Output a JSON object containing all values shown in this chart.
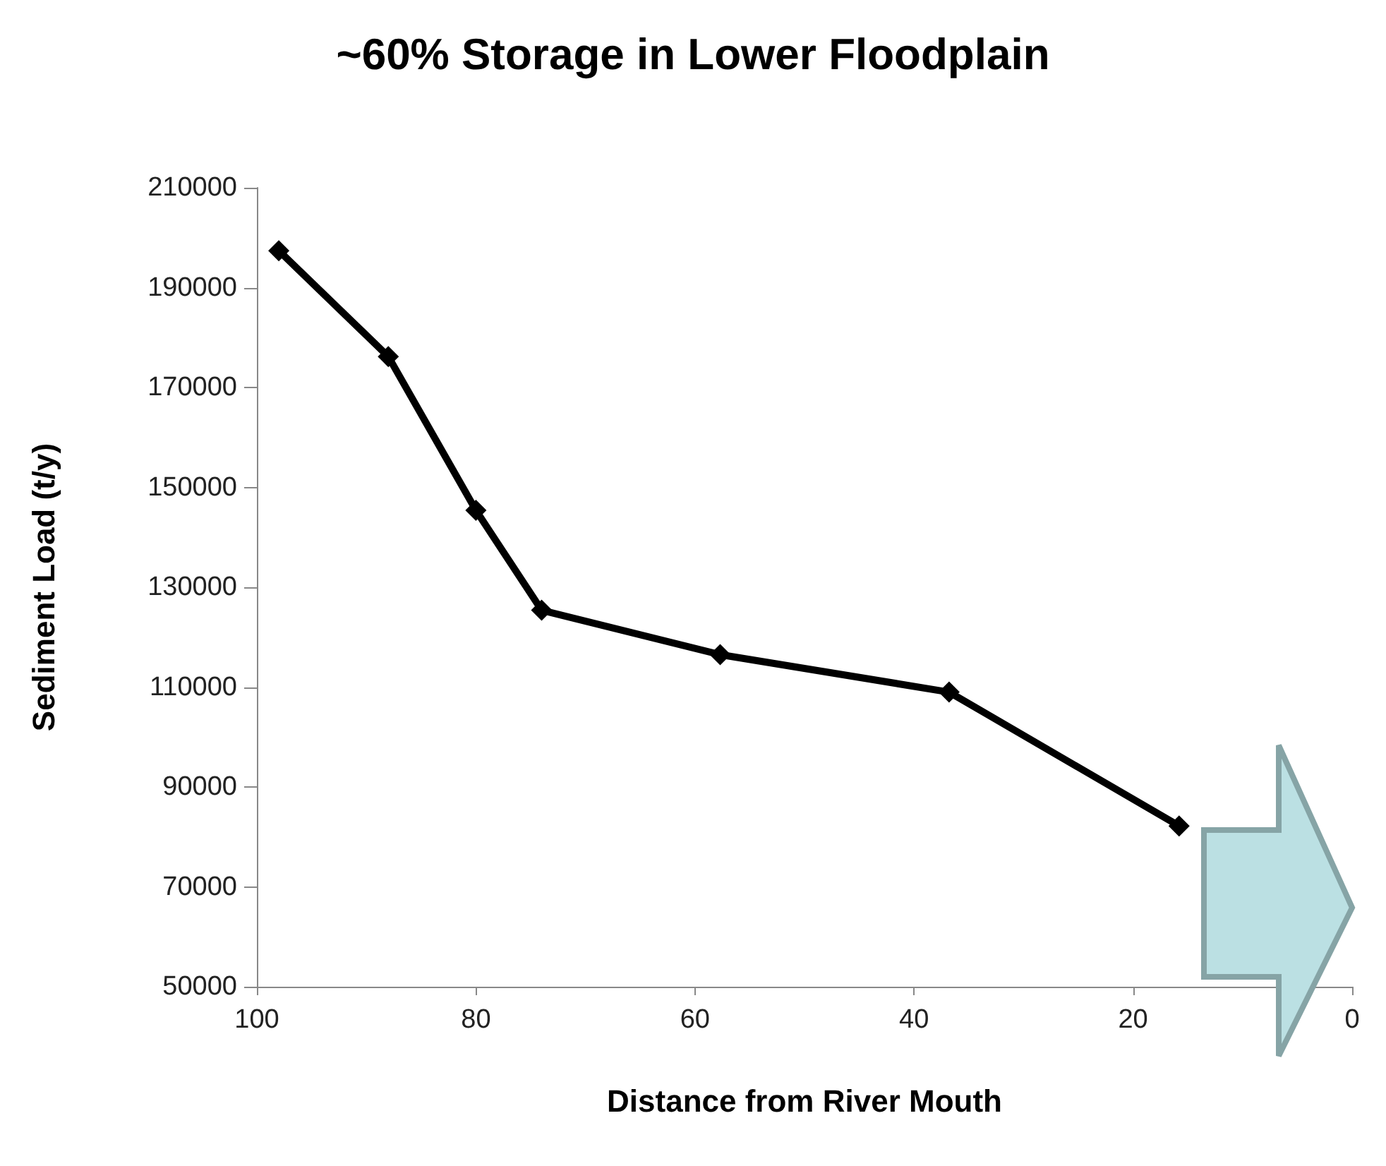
{
  "chart_data": {
    "type": "line",
    "title": "~60% Storage in Lower Floodplain",
    "xlabel": "Distance from River Mouth",
    "ylabel": "Sediment Load (t/y)",
    "x": [
      98,
      88,
      80,
      74,
      57.7,
      36.8,
      15.8
    ],
    "series": [
      {
        "color": "#000000",
        "values": [
          197400,
          176200,
          145400,
          125400,
          116500,
          109000,
          82200
        ]
      }
    ],
    "xlim": [
      100,
      0
    ],
    "xticks": [
      100,
      80,
      60,
      40,
      20,
      0
    ],
    "ylim": [
      50000,
      210000
    ],
    "yticks": [
      50000,
      70000,
      90000,
      110000,
      130000,
      150000,
      170000,
      190000,
      210000
    ],
    "marker": "diamond",
    "line_style": "solid"
  }
}
